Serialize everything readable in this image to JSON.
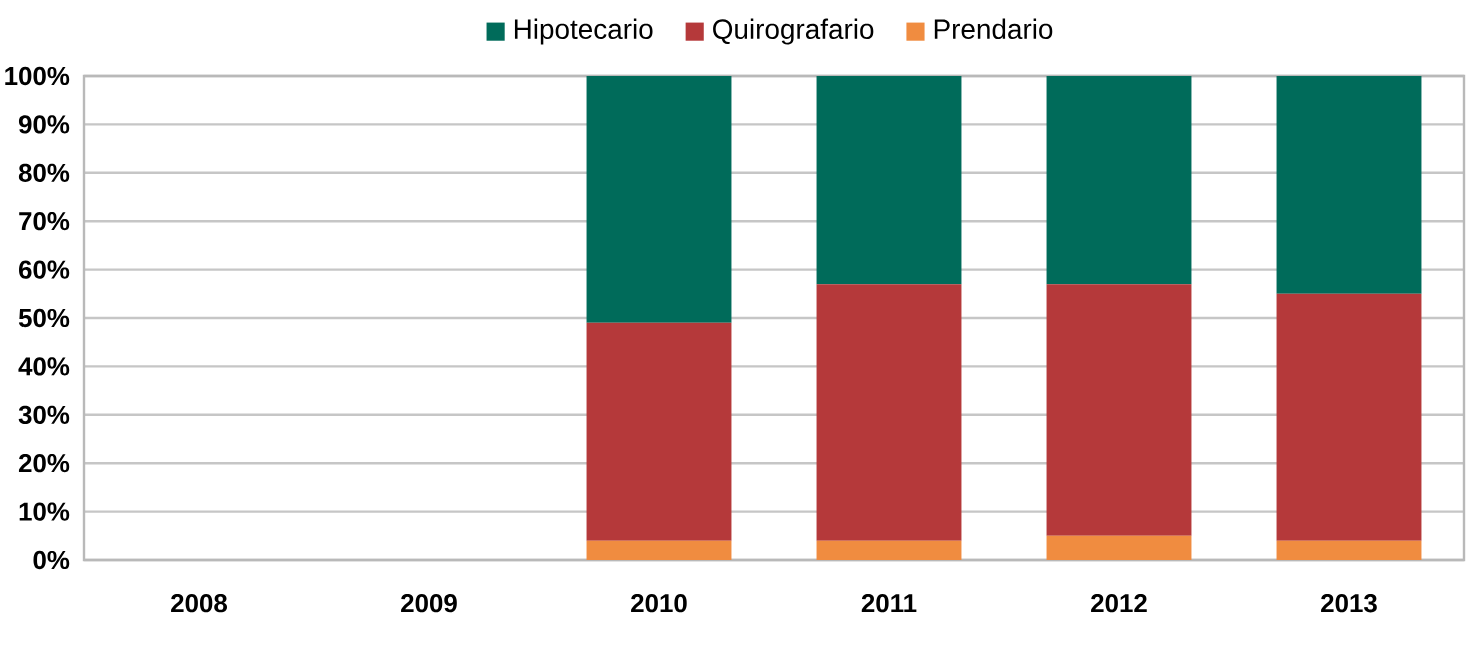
{
  "chart_data": {
    "type": "bar",
    "stacked": true,
    "categories": [
      "2008",
      "2009",
      "2010",
      "2011",
      "2012",
      "2013"
    ],
    "series": [
      {
        "name": "Prendario",
        "color": "#f08c40",
        "values": [
          null,
          null,
          4,
          4,
          5,
          4
        ]
      },
      {
        "name": "Quirografario",
        "color": "#b5393a",
        "values": [
          null,
          null,
          45,
          53,
          52,
          51
        ]
      },
      {
        "name": "Hipotecario",
        "color": "#006b5a",
        "values": [
          null,
          null,
          51,
          43,
          43,
          45
        ]
      }
    ],
    "ylim": [
      0,
      100
    ],
    "yticks": [
      {
        "value": 0,
        "label": "0%"
      },
      {
        "value": 10,
        "label": "10%"
      },
      {
        "value": 20,
        "label": "20%"
      },
      {
        "value": 30,
        "label": "30%"
      },
      {
        "value": 40,
        "label": "40%"
      },
      {
        "value": 50,
        "label": "50%"
      },
      {
        "value": 60,
        "label": "60%"
      },
      {
        "value": 70,
        "label": "70%"
      },
      {
        "value": 80,
        "label": "80%"
      },
      {
        "value": 90,
        "label": "90%"
      },
      {
        "value": 100,
        "label": "100%"
      }
    ],
    "grid": "y",
    "legend": "top"
  }
}
